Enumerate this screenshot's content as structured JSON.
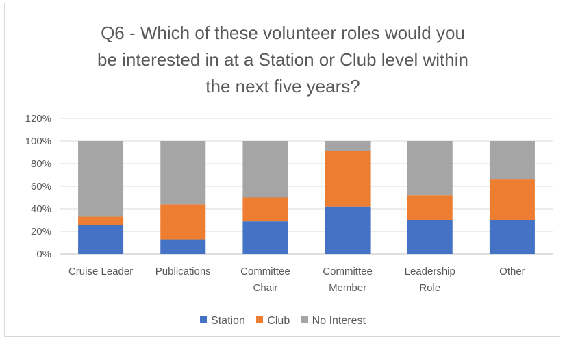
{
  "chart_data": {
    "type": "bar",
    "stacked": true,
    "title": "Q6 - Which of these volunteer roles would you be interested in at a Station or Club level within the next five years?",
    "title_lines": [
      "Q6 - Which of these volunteer roles would you",
      "be interested in at a Station or Club level within",
      "the next five years?"
    ],
    "categories": [
      "Cruise Leader",
      "Publications",
      "Committee Chair",
      "Committee Member",
      "Leadership Role",
      "Other"
    ],
    "category_lines": [
      [
        "Cruise Leader"
      ],
      [
        "Publications"
      ],
      [
        "Committee",
        "Chair"
      ],
      [
        "Committee",
        "Member"
      ],
      [
        "Leadership",
        "Role"
      ],
      [
        "Other"
      ]
    ],
    "series": [
      {
        "name": "Station",
        "color": "#4472c4",
        "values": [
          26,
          13,
          29,
          42,
          30,
          30
        ]
      },
      {
        "name": "Club",
        "color": "#ed7d31",
        "values": [
          7,
          31,
          21,
          49,
          22,
          36
        ]
      },
      {
        "name": "No Interest",
        "color": "#a5a5a5",
        "values": [
          67,
          56,
          50,
          9,
          48,
          34
        ]
      }
    ],
    "y_ticks": [
      "0%",
      "20%",
      "40%",
      "60%",
      "80%",
      "100%",
      "120%"
    ],
    "ylim": [
      0,
      120
    ],
    "grid": true,
    "legend_position": "bottom"
  }
}
